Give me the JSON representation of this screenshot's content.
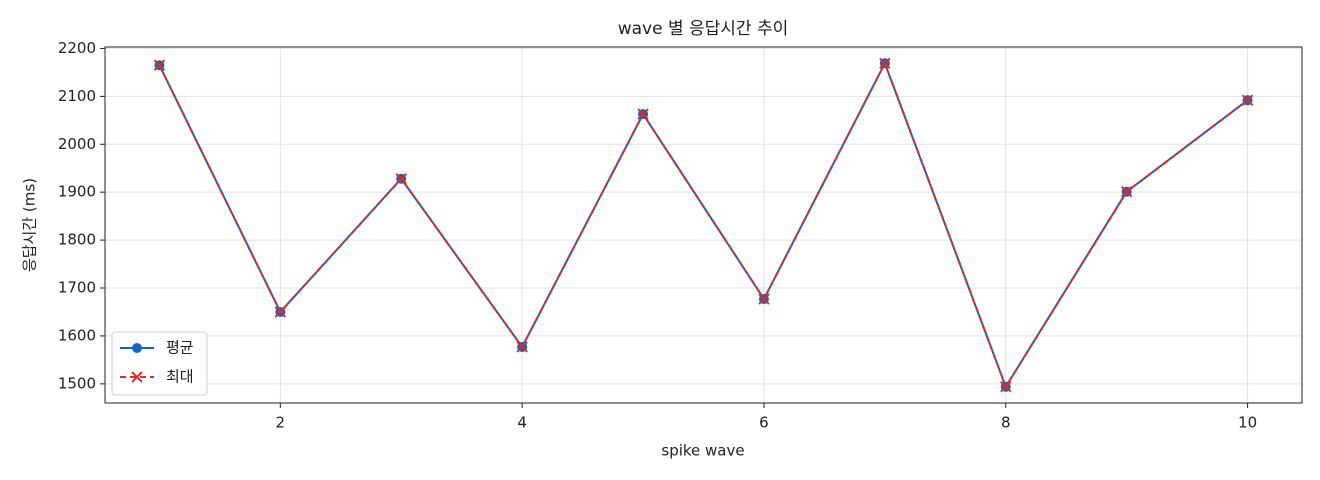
{
  "chart_data": {
    "type": "line",
    "title": "wave 별 응답시간 추이",
    "x_label": "spike wave",
    "y_label": "응답시간 (ms)",
    "x": [
      1,
      2,
      3,
      4,
      5,
      6,
      7,
      8,
      9,
      10
    ],
    "series": [
      {
        "name": "평균",
        "color": "#1565c0",
        "marker": "o",
        "linestyle": "solid",
        "values": [
          2165,
          1650,
          1928,
          1577,
          2063,
          1677,
          2169,
          1494,
          1901,
          2092
        ]
      },
      {
        "name": "최대",
        "color": "#d32f2f",
        "marker": "x",
        "linestyle": "dashed",
        "values": [
          2165,
          1650,
          1928,
          1577,
          2063,
          1677,
          2169,
          1494,
          1901,
          2092
        ]
      }
    ],
    "xlim": [
      0.55,
      10.45
    ],
    "ylim": [
      1460,
      2203
    ],
    "xticks": [
      2,
      4,
      6,
      8,
      10
    ],
    "yticks": [
      1500,
      1600,
      1700,
      1800,
      1900,
      2000,
      2100,
      2200
    ],
    "grid": true,
    "legend_loc": "lower left"
  }
}
